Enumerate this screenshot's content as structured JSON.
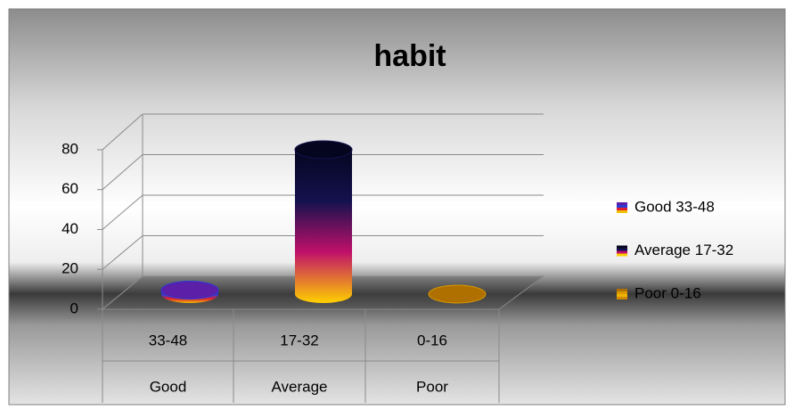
{
  "chart_data": {
    "type": "cylinder",
    "title": "habit",
    "categories": [
      "33-48",
      "17-32",
      "0-16"
    ],
    "groups": [
      "Good",
      "Average",
      "Poor"
    ],
    "legend": [
      "Good  33-48",
      "Average  17-32",
      "Poor  0-16"
    ],
    "values": [
      2,
      72,
      0
    ],
    "colors": [
      [
        "#5b1fa8",
        "#2a3bd6",
        "#e02030",
        "#f0c000"
      ],
      [
        "#050520",
        "#14124e",
        "#c0106a",
        "#ffd000"
      ],
      [
        "#b07000",
        "#d89a00",
        "#f0b400",
        "#d08a00"
      ]
    ],
    "ylim": [
      0,
      80
    ],
    "yticks": [
      0,
      20,
      40,
      60,
      80
    ],
    "grid": true
  }
}
